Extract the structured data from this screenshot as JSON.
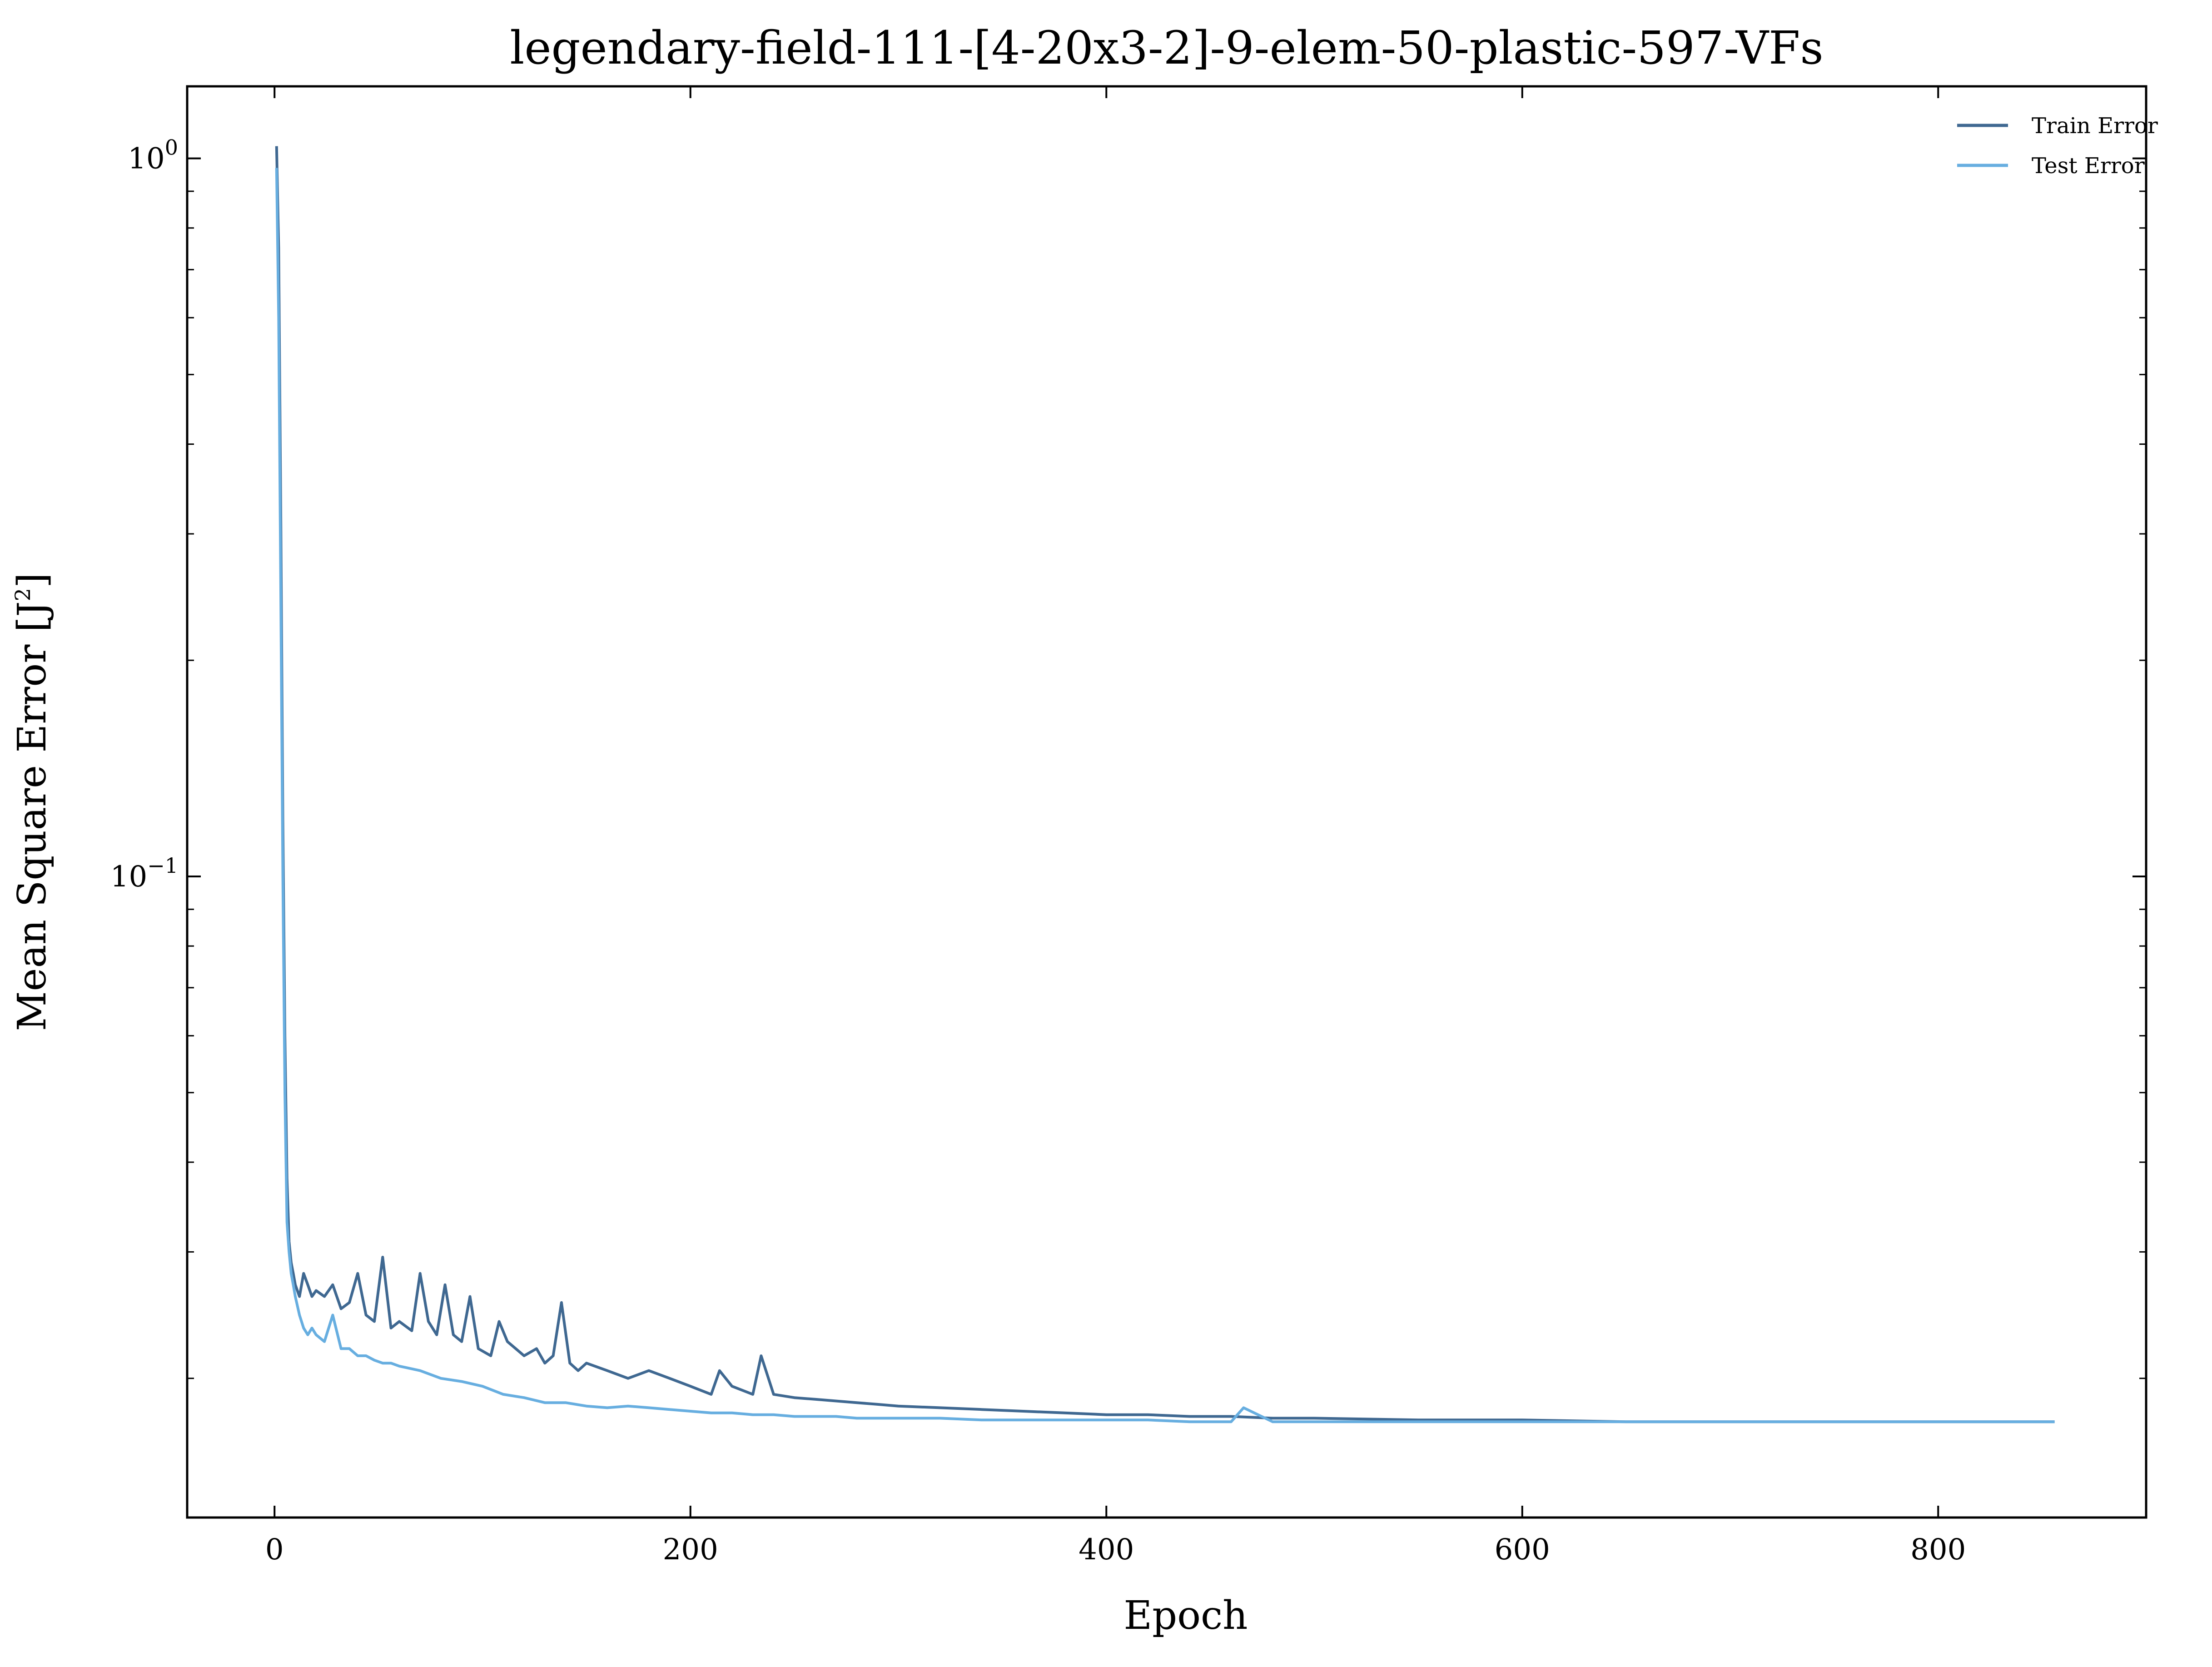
{
  "chart_data": {
    "type": "line",
    "title": "legendary-field-111-[4-20x3-2]-9-elem-50-plastic-597-VFs",
    "xlabel": "Epoch",
    "ylabel_main": "Mean Square Error [J",
    "ylabel_sup": "2",
    "ylabel_end": "]",
    "xlim": [
      -42,
      900
    ],
    "ylim": [
      0.0128,
      1.26
    ],
    "yscale": "log",
    "grid": false,
    "legend_position": "top-right",
    "x_ticks": [
      {
        "value": 0,
        "label": "0"
      },
      {
        "value": 200,
        "label": "200"
      },
      {
        "value": 400,
        "label": "400"
      },
      {
        "value": 600,
        "label": "600"
      },
      {
        "value": 800,
        "label": "800"
      }
    ],
    "y_ticks": [
      {
        "value": 1,
        "base": "10",
        "exp": "0"
      },
      {
        "value": 0.1,
        "base": "10",
        "exp": "−1"
      }
    ],
    "series": [
      {
        "name": "Train Error",
        "color": "#3f6891",
        "x": [
          1,
          2,
          3,
          4,
          5,
          6,
          7,
          8,
          9,
          10,
          12,
          14,
          16,
          18,
          20,
          24,
          28,
          32,
          36,
          40,
          44,
          48,
          52,
          56,
          60,
          66,
          70,
          74,
          78,
          82,
          86,
          90,
          94,
          98,
          104,
          108,
          112,
          116,
          120,
          126,
          130,
          134,
          138,
          142,
          146,
          150,
          160,
          170,
          180,
          190,
          200,
          210,
          214,
          220,
          230,
          234,
          240,
          250,
          260,
          270,
          280,
          290,
          300,
          320,
          340,
          360,
          380,
          400,
          420,
          440,
          460,
          480,
          500,
          550,
          600,
          650,
          700,
          750,
          800,
          856
        ],
        "values": [
          1.04,
          0.75,
          0.32,
          0.12,
          0.06,
          0.038,
          0.031,
          0.029,
          0.028,
          0.027,
          0.026,
          0.028,
          0.027,
          0.026,
          0.0265,
          0.026,
          0.027,
          0.025,
          0.0255,
          0.028,
          0.0245,
          0.024,
          0.0295,
          0.0235,
          0.024,
          0.0233,
          0.028,
          0.024,
          0.023,
          0.027,
          0.023,
          0.0225,
          0.026,
          0.022,
          0.0215,
          0.024,
          0.0225,
          0.022,
          0.0215,
          0.022,
          0.021,
          0.0215,
          0.0255,
          0.021,
          0.0205,
          0.021,
          0.0205,
          0.02,
          0.0205,
          0.02,
          0.0195,
          0.019,
          0.0205,
          0.0195,
          0.019,
          0.0215,
          0.019,
          0.0188,
          0.0187,
          0.0186,
          0.0185,
          0.0184,
          0.0183,
          0.0182,
          0.0181,
          0.018,
          0.0179,
          0.0178,
          0.0178,
          0.0177,
          0.0177,
          0.0176,
          0.0176,
          0.0175,
          0.0175,
          0.0174,
          0.0174,
          0.0174,
          0.0174,
          0.0174
        ]
      },
      {
        "name": "Test Error",
        "color": "#67aee0",
        "x": [
          1,
          2,
          3,
          4,
          5,
          6,
          7,
          8,
          9,
          10,
          12,
          14,
          16,
          18,
          20,
          24,
          28,
          32,
          36,
          40,
          44,
          48,
          52,
          56,
          60,
          70,
          80,
          90,
          100,
          110,
          120,
          130,
          140,
          150,
          160,
          170,
          180,
          190,
          200,
          210,
          220,
          230,
          240,
          250,
          260,
          270,
          280,
          290,
          300,
          320,
          340,
          360,
          380,
          400,
          420,
          440,
          460,
          466,
          480,
          500,
          550,
          600,
          650,
          700,
          750,
          800,
          856
        ],
        "values": [
          0.97,
          0.6,
          0.25,
          0.1,
          0.05,
          0.033,
          0.03,
          0.028,
          0.027,
          0.026,
          0.0245,
          0.0235,
          0.023,
          0.0235,
          0.023,
          0.0225,
          0.0245,
          0.022,
          0.022,
          0.0215,
          0.0215,
          0.0212,
          0.021,
          0.021,
          0.0208,
          0.0205,
          0.02,
          0.0198,
          0.0195,
          0.019,
          0.0188,
          0.0185,
          0.0185,
          0.0183,
          0.0182,
          0.0183,
          0.0182,
          0.0181,
          0.018,
          0.0179,
          0.0179,
          0.0178,
          0.0178,
          0.0177,
          0.0177,
          0.0177,
          0.0176,
          0.0176,
          0.0176,
          0.0176,
          0.0175,
          0.0175,
          0.0175,
          0.0175,
          0.0175,
          0.0174,
          0.0174,
          0.0182,
          0.0174,
          0.0174,
          0.0174,
          0.0174,
          0.0174,
          0.0174,
          0.0174,
          0.0174,
          0.0174
        ]
      }
    ]
  }
}
